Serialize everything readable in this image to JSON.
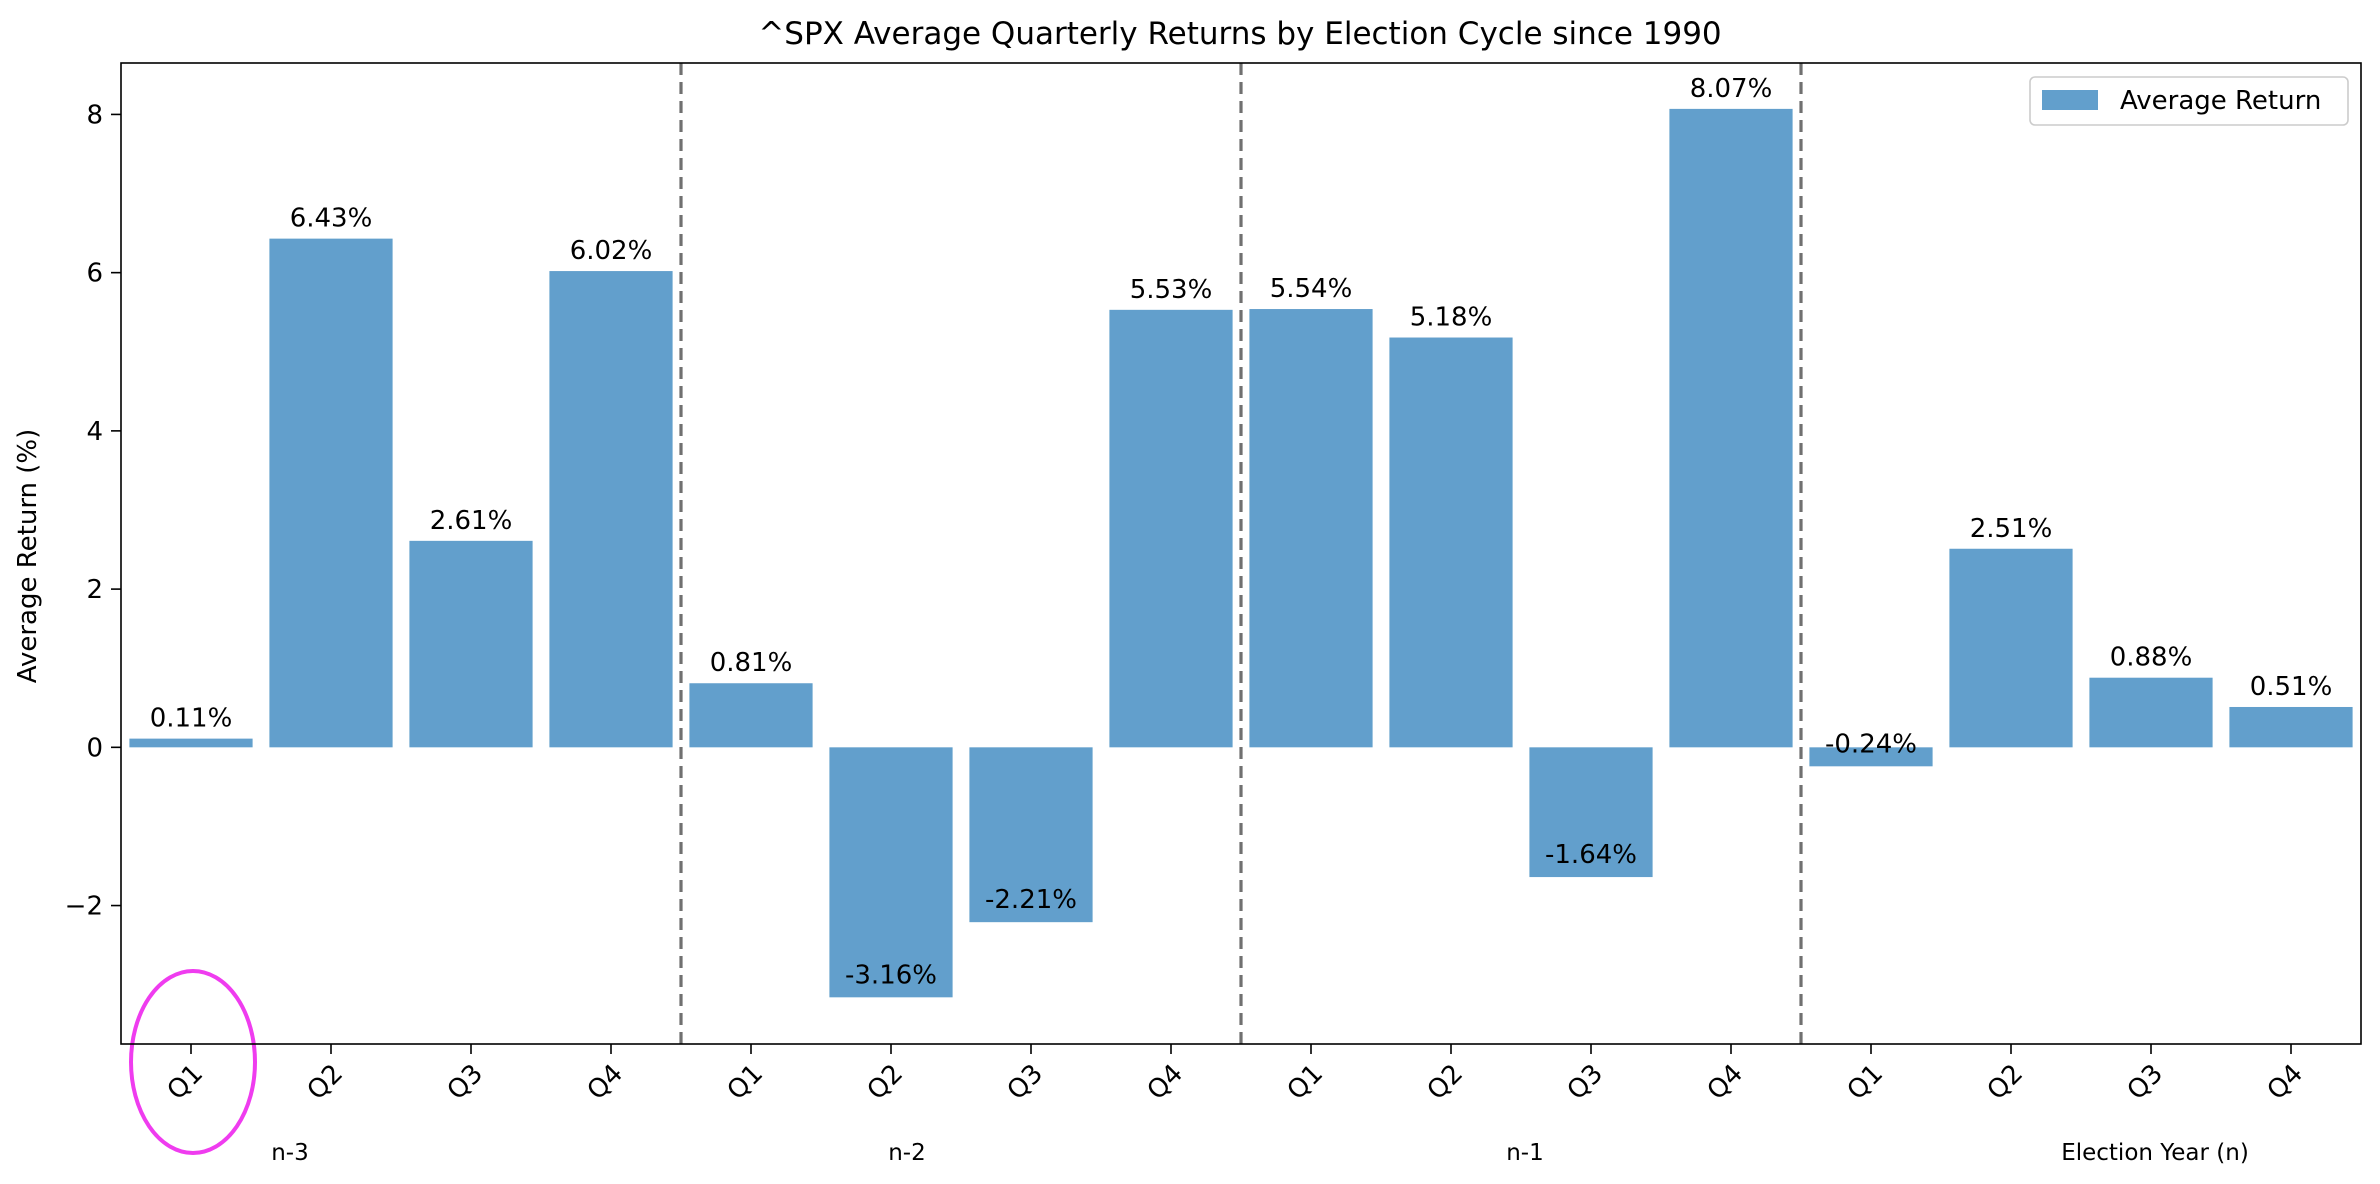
{
  "chart_data": {
    "type": "bar",
    "title": "^SPX Average Quarterly Returns by Election Cycle since 1990",
    "ylabel": "Average Return (%)",
    "xlabel": "",
    "ylim": [
      -3.75,
      8.65
    ],
    "yticks": [
      -2,
      0,
      2,
      4,
      6,
      8
    ],
    "ytick_labels": [
      "−2",
      "0",
      "2",
      "4",
      "6",
      "8"
    ],
    "categories": [
      "Q1",
      "Q2",
      "Q3",
      "Q4",
      "Q1",
      "Q2",
      "Q3",
      "Q4",
      "Q1",
      "Q2",
      "Q3",
      "Q4",
      "Q1",
      "Q2",
      "Q3",
      "Q4"
    ],
    "series": [
      {
        "name": "Average Return",
        "values": [
          0.11,
          6.43,
          2.61,
          6.02,
          0.81,
          -3.16,
          -2.21,
          5.53,
          5.54,
          5.18,
          -1.64,
          8.07,
          -0.24,
          2.51,
          0.88,
          0.51
        ],
        "labels": [
          "0.11%",
          "6.43%",
          "2.61%",
          "6.02%",
          "0.81%",
          "-3.16%",
          "-2.21%",
          "5.53%",
          "5.54%",
          "5.18%",
          "-1.64%",
          "8.07%",
          "-0.24%",
          "2.51%",
          "0.88%",
          "0.51%"
        ],
        "color": "#629fcc"
      }
    ],
    "groups": [
      "n-3",
      "n-2",
      "n-1",
      "Election Year (n)"
    ],
    "legend": {
      "position": "top-right",
      "entries": [
        "Average Return"
      ]
    },
    "separator_color": "#707070",
    "highlight": {
      "category_index": 0,
      "color": "#ef3cef"
    },
    "grid": false
  }
}
